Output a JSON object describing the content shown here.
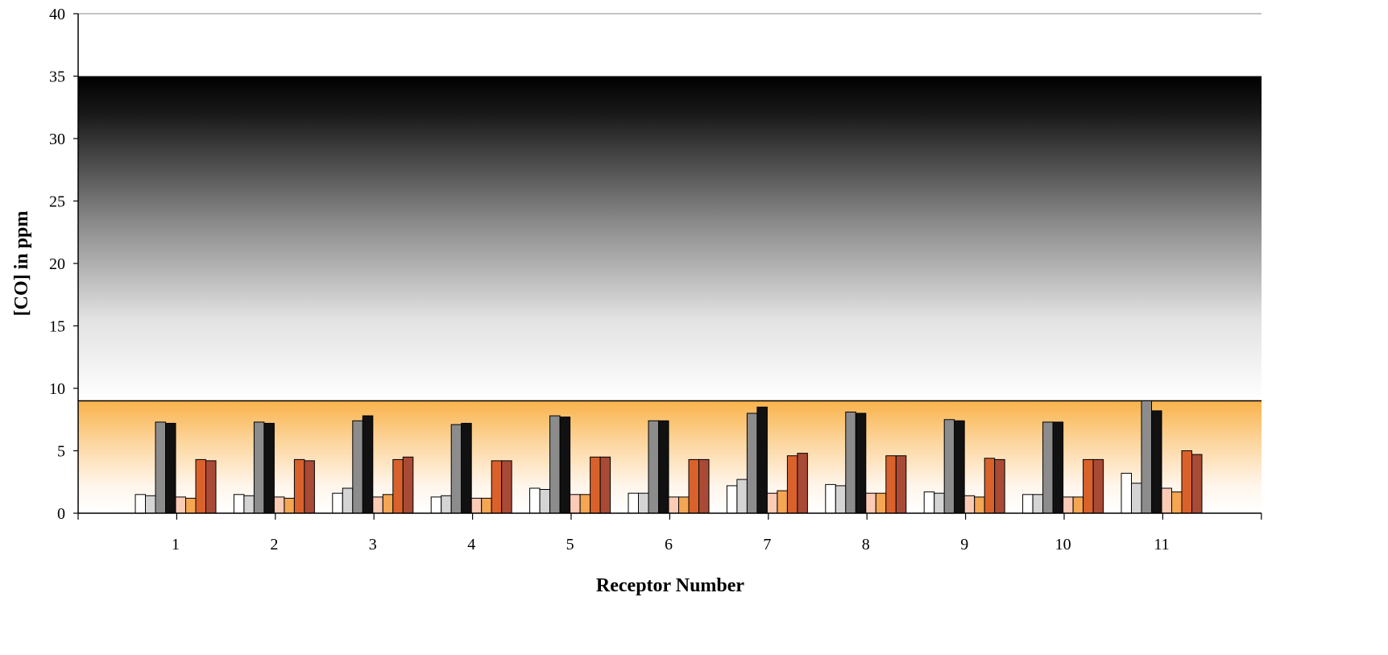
{
  "chart_data": {
    "type": "bar",
    "xlabel": "Receptor Number",
    "ylabel": "[CO] in ppm",
    "ylim": [
      0,
      40
    ],
    "yticks": [
      0,
      5,
      10,
      15,
      20,
      25,
      30,
      35,
      40
    ],
    "categories": [
      "1",
      "2",
      "3",
      "4",
      "5",
      "6",
      "7",
      "8",
      "9",
      "10",
      "11"
    ],
    "grid": false,
    "legend": "none",
    "bands": [
      {
        "from": 9,
        "to": 35,
        "fill": "gradient-black-to-white"
      },
      {
        "from": 0,
        "to": 9,
        "fill": "gradient-orange-to-white"
      }
    ],
    "series": [
      {
        "color": "#ffffff",
        "values": [
          1.5,
          1.5,
          1.6,
          1.3,
          2.0,
          1.6,
          2.2,
          2.3,
          1.7,
          1.5,
          3.2
        ]
      },
      {
        "color": "#d4d4d4",
        "values": [
          1.4,
          1.4,
          2.0,
          1.4,
          1.9,
          1.6,
          2.7,
          2.2,
          1.6,
          1.5,
          2.4
        ]
      },
      {
        "color": "#8c8c8c",
        "values": [
          7.3,
          7.3,
          7.4,
          7.1,
          7.8,
          7.4,
          8.0,
          8.1,
          7.5,
          7.3,
          9.0
        ]
      },
      {
        "color": "#111111",
        "values": [
          7.2,
          7.2,
          7.8,
          7.2,
          7.7,
          7.4,
          8.5,
          8.0,
          7.4,
          7.3,
          8.2
        ]
      },
      {
        "color": "#fbcbb6",
        "values": [
          1.3,
          1.3,
          1.3,
          1.2,
          1.5,
          1.3,
          1.6,
          1.6,
          1.4,
          1.3,
          2.0
        ]
      },
      {
        "color": "#f4a652",
        "values": [
          1.2,
          1.2,
          1.5,
          1.2,
          1.5,
          1.3,
          1.8,
          1.6,
          1.3,
          1.3,
          1.7
        ]
      },
      {
        "color": "#d9612c",
        "values": [
          4.3,
          4.3,
          4.3,
          4.2,
          4.5,
          4.3,
          4.6,
          4.6,
          4.4,
          4.3,
          5.0
        ]
      },
      {
        "color": "#a84a35",
        "values": [
          4.2,
          4.2,
          4.5,
          4.2,
          4.5,
          4.3,
          4.8,
          4.6,
          4.3,
          4.3,
          4.7
        ]
      }
    ]
  }
}
